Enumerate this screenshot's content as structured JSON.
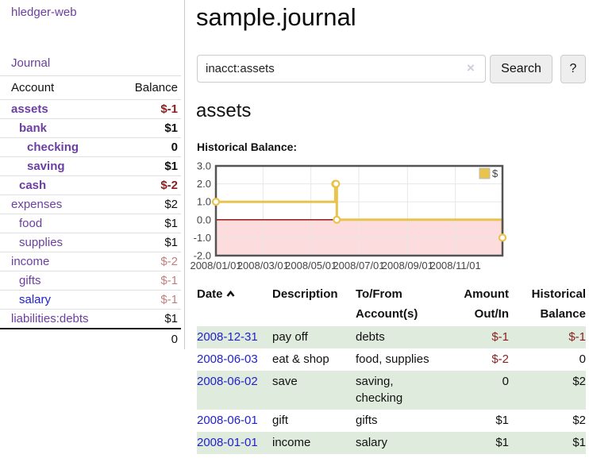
{
  "sidebar": {
    "app_title": "hledger-web",
    "journal_label": "Journal",
    "accounts_table": {
      "account_header": "Account",
      "balance_header": "Balance",
      "rows": [
        {
          "name": "assets",
          "balance": "$-1",
          "depth": 0,
          "emphasis": true,
          "balance_color": "neg-strong",
          "name_color": "purple"
        },
        {
          "name": "bank",
          "balance": "$1",
          "depth": 1,
          "emphasis": true,
          "balance_color": "",
          "name_color": "purple"
        },
        {
          "name": "checking",
          "balance": "0",
          "depth": 2,
          "emphasis": true,
          "balance_color": "",
          "name_color": "purple"
        },
        {
          "name": "saving",
          "balance": "$1",
          "depth": 2,
          "emphasis": true,
          "balance_color": "",
          "name_color": "purple"
        },
        {
          "name": "cash",
          "balance": "$-2",
          "depth": 1,
          "emphasis": true,
          "balance_color": "neg-strong",
          "name_color": "purple"
        },
        {
          "name": "expenses",
          "balance": "$2",
          "depth": 0,
          "emphasis": false,
          "balance_color": "",
          "name_color": "purple"
        },
        {
          "name": "food",
          "balance": "$1",
          "depth": 1,
          "emphasis": false,
          "balance_color": "",
          "name_color": "purple"
        },
        {
          "name": "supplies",
          "balance": "$1",
          "depth": 1,
          "emphasis": false,
          "balance_color": "",
          "name_color": "purple"
        },
        {
          "name": "income",
          "balance": "$-2",
          "depth": 0,
          "emphasis": false,
          "balance_color": "neg-soft",
          "name_color": "purple"
        },
        {
          "name": "gifts",
          "balance": "$-1",
          "depth": 1,
          "emphasis": false,
          "balance_color": "neg-soft",
          "name_color": "purple"
        },
        {
          "name": "salary",
          "balance": "$-1",
          "depth": 1,
          "emphasis": false,
          "balance_color": "neg-soft",
          "name_color": "blue"
        },
        {
          "name": "liabilities:debts",
          "balance": "$1",
          "depth": 0,
          "emphasis": false,
          "balance_color": "",
          "name_color": "purple"
        }
      ],
      "total": "0"
    }
  },
  "main": {
    "title": "sample.journal",
    "search": {
      "value": "inacct:assets",
      "placeholder": "",
      "search_label": "Search",
      "help_label": "?"
    },
    "account_heading": "assets",
    "chart_label": "Historical Balance:"
  },
  "icons": {
    "clear_search": "×",
    "sort_ascending": "chevron-up"
  },
  "register_table": {
    "headers": {
      "date": "Date",
      "description": "Description",
      "accounts": "To/From Account(s)",
      "amount": "Amount Out/In",
      "balance": "Historical Balance"
    },
    "rows": [
      {
        "date": "2008-12-31",
        "description": "pay off",
        "accounts": "debts",
        "amount": "$-1",
        "amount_negative": true,
        "balance": "$-1",
        "balance_negative": true,
        "green": true
      },
      {
        "date": "2008-06-03",
        "description": "eat & shop",
        "accounts": "food, supplies",
        "amount": "$-2",
        "amount_negative": true,
        "balance": "0",
        "balance_negative": false,
        "green": false
      },
      {
        "date": "2008-06-02",
        "description": "save",
        "accounts": "saving, checking",
        "amount": "0",
        "amount_negative": false,
        "balance": "$2",
        "balance_negative": false,
        "green": true
      },
      {
        "date": "2008-06-01",
        "description": "gift",
        "accounts": "gifts",
        "amount": "$1",
        "amount_negative": false,
        "balance": "$2",
        "balance_negative": false,
        "green": false
      },
      {
        "date": "2008-01-01",
        "description": "income",
        "accounts": "salary",
        "amount": "$1",
        "amount_negative": false,
        "balance": "$1",
        "balance_negative": false,
        "green": true
      }
    ]
  },
  "chart_data": {
    "type": "line",
    "title": "Historical Balance",
    "style": "steps",
    "series": [
      {
        "name": "$",
        "color": "#e8c34e",
        "points": [
          [
            "2008-01-01",
            1
          ],
          [
            "2008-06-01",
            2
          ],
          [
            "2008-06-02",
            2
          ],
          [
            "2008-06-03",
            0
          ],
          [
            "2008-12-31",
            -1
          ]
        ]
      }
    ],
    "xlim": [
      "2008-01-01",
      "2008-12-31"
    ],
    "ylim": [
      -2,
      3
    ],
    "x_ticks": [
      "2008/01/01",
      "2008/03/01",
      "2008/05/01",
      "2008/07/01",
      "2008/09/01",
      "2008/11/01"
    ],
    "y_ticks": [
      "3.0",
      "2.0",
      "1.0",
      "0.0",
      "-1.0",
      "-2.0"
    ],
    "legend": {
      "label": "$",
      "position": "top-right"
    },
    "grid": true,
    "colors": {
      "negative_region": "#fcdcdc",
      "zero_line": "#8b0000",
      "gridline": "#e7e7e7",
      "plot_border": "#545454",
      "axis_text": "#444444",
      "marker_fill": "#ffffff"
    }
  }
}
